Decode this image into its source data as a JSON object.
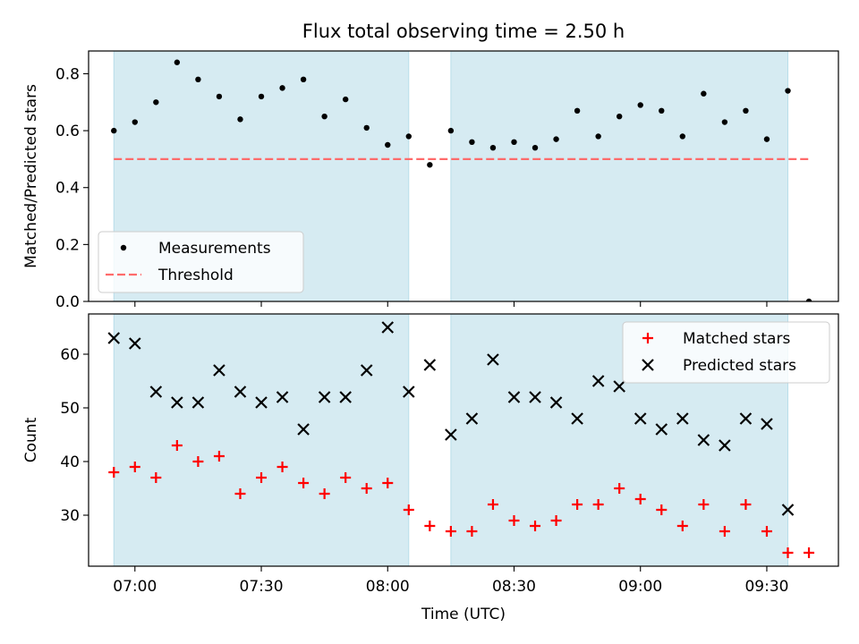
{
  "chart_data": [
    {
      "type": "scatter",
      "title": "Flux total observing time = 2.50 h",
      "xlabel": "",
      "ylabel": "Matched/Predicted stars",
      "ylim": [
        0,
        0.88
      ],
      "yticks": [
        0.0,
        0.2,
        0.4,
        0.6,
        0.8
      ],
      "ytick_labels": [
        "0.0",
        "0.2",
        "0.4",
        "0.6",
        "0.8"
      ],
      "xlim": [
        "06:49",
        "09:47"
      ],
      "x_time_unit": "HH:MM UTC",
      "xticks": [
        "07:00",
        "07:30",
        "08:00",
        "08:30",
        "09:00",
        "09:30"
      ],
      "shaded_spans": [
        [
          "06:55",
          "08:05"
        ],
        [
          "08:15",
          "09:35"
        ]
      ],
      "shade_color": "#add8e6",
      "legend": {
        "placement": "lower-left"
      },
      "series": [
        {
          "name": "Measurements",
          "kind": "dot",
          "color": "#000000",
          "x": [
            "06:55",
            "07:00",
            "07:05",
            "07:10",
            "07:15",
            "07:20",
            "07:25",
            "07:30",
            "07:35",
            "07:40",
            "07:45",
            "07:50",
            "07:55",
            "08:00",
            "08:05",
            "08:10",
            "08:15",
            "08:20",
            "08:25",
            "08:30",
            "08:35",
            "08:40",
            "08:45",
            "08:50",
            "08:55",
            "09:00",
            "09:05",
            "09:10",
            "09:15",
            "09:20",
            "09:25",
            "09:30",
            "09:35",
            "09:40"
          ],
          "y": [
            0.6,
            0.63,
            0.7,
            0.84,
            0.78,
            0.72,
            0.64,
            0.72,
            0.75,
            0.78,
            0.65,
            0.71,
            0.61,
            0.55,
            0.58,
            0.48,
            0.6,
            0.56,
            0.54,
            0.56,
            0.54,
            0.57,
            0.67,
            0.58,
            0.65,
            0.69,
            0.67,
            0.58,
            0.73,
            0.63,
            0.67,
            0.57,
            0.74,
            0.0
          ]
        },
        {
          "name": "Threshold",
          "kind": "dashed-line",
          "color": "#ff6b6b",
          "x": [
            "06:55",
            "09:40"
          ],
          "y": [
            0.5,
            0.5
          ]
        }
      ]
    },
    {
      "type": "scatter",
      "title": "",
      "xlabel": "Time (UTC)",
      "ylabel": "Count",
      "ylim": [
        20.5,
        67.5
      ],
      "yticks": [
        30,
        40,
        50,
        60
      ],
      "ytick_labels": [
        "30",
        "40",
        "50",
        "60"
      ],
      "xlim": [
        "06:49",
        "09:47"
      ],
      "x_time_unit": "HH:MM UTC",
      "xticks": [
        "07:00",
        "07:30",
        "08:00",
        "08:30",
        "09:00",
        "09:30"
      ],
      "shaded_spans": [
        [
          "06:55",
          "08:05"
        ],
        [
          "08:15",
          "09:35"
        ]
      ],
      "shade_color": "#add8e6",
      "legend": {
        "placement": "top-right"
      },
      "series": [
        {
          "name": "Matched stars",
          "kind": "plus",
          "color": "#ff0000",
          "x": [
            "06:55",
            "07:00",
            "07:05",
            "07:10",
            "07:15",
            "07:20",
            "07:25",
            "07:30",
            "07:35",
            "07:40",
            "07:45",
            "07:50",
            "07:55",
            "08:00",
            "08:05",
            "08:10",
            "08:15",
            "08:20",
            "08:25",
            "08:30",
            "08:35",
            "08:40",
            "08:45",
            "08:50",
            "08:55",
            "09:00",
            "09:05",
            "09:10",
            "09:15",
            "09:20",
            "09:25",
            "09:30",
            "09:35",
            "09:40"
          ],
          "y": [
            38,
            39,
            37,
            43,
            40,
            41,
            34,
            37,
            39,
            36,
            34,
            37,
            35,
            36,
            31,
            28,
            27,
            27,
            32,
            29,
            28,
            29,
            32,
            32,
            35,
            33,
            31,
            28,
            32,
            27,
            32,
            27,
            23,
            23
          ]
        },
        {
          "name": "Predicted stars",
          "kind": "cross",
          "color": "#000000",
          "x": [
            "06:55",
            "07:00",
            "07:05",
            "07:10",
            "07:15",
            "07:20",
            "07:25",
            "07:30",
            "07:35",
            "07:40",
            "07:45",
            "07:50",
            "07:55",
            "08:00",
            "08:05",
            "08:10",
            "08:15",
            "08:20",
            "08:25",
            "08:30",
            "08:35",
            "08:40",
            "08:45",
            "08:50",
            "08:55",
            "09:00",
            "09:05",
            "09:10",
            "09:15",
            "09:20",
            "09:25",
            "09:30",
            "09:35"
          ],
          "y": [
            63,
            62,
            53,
            51,
            51,
            57,
            53,
            51,
            52,
            46,
            52,
            52,
            57,
            65,
            53,
            58,
            45,
            48,
            59,
            52,
            52,
            51,
            48,
            55,
            54,
            48,
            46,
            48,
            44,
            43,
            48,
            47,
            31
          ]
        }
      ]
    }
  ]
}
